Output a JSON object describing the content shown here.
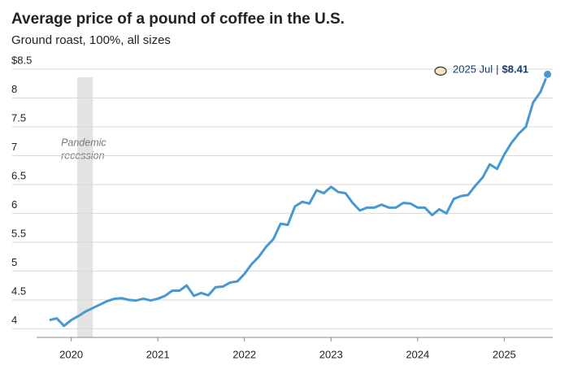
{
  "chart_data": {
    "type": "line",
    "title": "Average price of a pound of coffee in the U.S.",
    "subtitle": "Ground roast, 100%, all sizes",
    "x": [
      2019.75,
      2019.833,
      2019.917,
      2020,
      2020.083,
      2020.167,
      2020.25,
      2020.333,
      2020.417,
      2020.5,
      2020.583,
      2020.667,
      2020.75,
      2020.833,
      2020.917,
      2021,
      2021.083,
      2021.167,
      2021.25,
      2021.333,
      2021.417,
      2021.5,
      2021.583,
      2021.667,
      2021.75,
      2021.833,
      2021.917,
      2022,
      2022.083,
      2022.167,
      2022.25,
      2022.333,
      2022.417,
      2022.5,
      2022.583,
      2022.667,
      2022.75,
      2022.833,
      2022.917,
      2023,
      2023.083,
      2023.167,
      2023.25,
      2023.333,
      2023.417,
      2023.5,
      2023.583,
      2023.667,
      2023.75,
      2023.833,
      2023.917,
      2024,
      2024.083,
      2024.167,
      2024.25,
      2024.333,
      2024.417,
      2024.5,
      2024.583,
      2024.667,
      2024.75,
      2024.833,
      2024.917,
      2025,
      2025.083,
      2025.167,
      2025.25,
      2025.333,
      2025.417,
      2025.5
    ],
    "values": [
      4.15,
      4.18,
      4.05,
      4.15,
      4.22,
      4.3,
      4.36,
      4.42,
      4.48,
      4.52,
      4.53,
      4.5,
      4.49,
      4.52,
      4.49,
      4.52,
      4.57,
      4.66,
      4.66,
      4.75,
      4.57,
      4.62,
      4.58,
      4.72,
      4.73,
      4.8,
      4.82,
      4.95,
      5.12,
      5.25,
      5.42,
      5.55,
      5.82,
      5.8,
      6.12,
      6.2,
      6.17,
      6.4,
      6.35,
      6.46,
      6.37,
      6.35,
      6.18,
      6.05,
      6.1,
      6.1,
      6.15,
      6.1,
      6.1,
      6.18,
      6.17,
      6.1,
      6.1,
      5.97,
      6.07,
      6.0,
      6.25,
      6.3,
      6.32,
      6.48,
      6.62,
      6.85,
      6.77,
      7.02,
      7.22,
      7.38,
      7.5,
      7.92,
      8.1,
      8.41
    ],
    "color": "#4a98d0",
    "xlim": [
      2019.6,
      2025.56
    ],
    "xticks": [
      2020,
      2021,
      2022,
      2023,
      2024,
      2025
    ],
    "ylim": [
      3.85,
      8.5
    ],
    "yticks": [
      4,
      4.5,
      5,
      5.5,
      6,
      6.5,
      7,
      7.5,
      {
        "value": 8,
        "label": "8"
      },
      {
        "value": 8.5,
        "label": "$8.5"
      }
    ],
    "grid": true,
    "shade": {
      "x": [
        2020.07,
        2020.25
      ],
      "label": [
        "Pandemic",
        "recession"
      ],
      "color": "#e3e3e3"
    },
    "annotation": {
      "date": "2025 Jul",
      "separator": "|",
      "value": 8.41,
      "value_label": "$8.41"
    }
  }
}
